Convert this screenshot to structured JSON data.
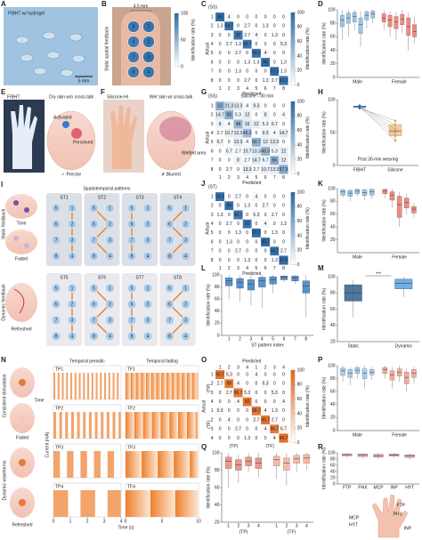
{
  "a": {
    "label": "A",
    "caption": "FIBHT w/ hydrogel",
    "scale": "5 mm"
  },
  "b": {
    "label": "B",
    "size": "4.5 mm",
    "ylabel": "Static spatial feedback",
    "points": [
      5,
      1,
      6,
      2,
      7,
      3,
      8,
      4
    ],
    "rates": [
      91,
      95,
      88,
      93,
      90,
      96,
      89,
      92
    ],
    "cbar": {
      "label": "Identification rate (%)",
      "lim": [
        0,
        100
      ],
      "ticks": [
        0,
        50,
        100
      ]
    }
  },
  "c": {
    "label": "C",
    "group": "(SS)",
    "xlabel": "Predicted",
    "ylabel": "Actual",
    "classes": [
      1,
      2,
      3,
      4,
      5,
      6,
      7,
      8
    ],
    "color": "#2a69a6",
    "matrix": [
      [
        96.0,
        4.0,
        0,
        0,
        0,
        0,
        0,
        0
      ],
      [
        1.3,
        94.7,
        0,
        2.7,
        0,
        1.3,
        0,
        0
      ],
      [
        0,
        0,
        92.0,
        2.7,
        4.0,
        0,
        1.3,
        0
      ],
      [
        0,
        2.7,
        1.3,
        90.7,
        0,
        0,
        0,
        5.3
      ],
      [
        0,
        0,
        2.7,
        0,
        93.3,
        4.0,
        0,
        0
      ],
      [
        0,
        0,
        0,
        1.3,
        1.3,
        96.0,
        0,
        1.3
      ],
      [
        0,
        0,
        1.3,
        0,
        0,
        0,
        97.3,
        1.3
      ],
      [
        0,
        0,
        0,
        2.7,
        0,
        1.3,
        2.7,
        93.3
      ]
    ],
    "cbar": {
      "label": "Identification rate (%)",
      "lim": [
        0,
        100
      ],
      "ticks": [
        0,
        20,
        40,
        60,
        80,
        100
      ]
    }
  },
  "d": {
    "label": "D",
    "ylabel": "Identification rate (%)",
    "ylim": [
      0,
      100
    ],
    "yticks": [
      0,
      20,
      40,
      60,
      80,
      100
    ],
    "groups": [
      {
        "name": "Male",
        "color": "#8ec1e4",
        "boxes": [
          [
            55,
            75,
            85,
            92,
            100
          ],
          [
            60,
            80,
            88,
            95,
            100
          ],
          [
            70,
            82,
            90,
            96,
            100
          ],
          [
            45,
            65,
            78,
            88,
            98
          ],
          [
            72,
            85,
            92,
            97,
            100
          ],
          [
            80,
            88,
            94,
            98,
            100
          ]
        ]
      },
      {
        "name": "Female",
        "color": "#ee7d72",
        "boxes": [
          [
            70,
            82,
            88,
            94,
            100
          ],
          [
            60,
            75,
            85,
            92,
            98
          ],
          [
            55,
            72,
            82,
            90,
            97
          ],
          [
            65,
            78,
            86,
            93,
            100
          ],
          [
            40,
            62,
            75,
            88,
            96
          ],
          [
            50,
            60,
            68,
            78,
            90
          ]
        ]
      }
    ]
  },
  "e": {
    "label": "E",
    "title": "FIBHT",
    "subtitle": "Dry skin w/o cross-talk",
    "activated": "Activated",
    "perceived": "Perceived",
    "verdict": "✓ Precise"
  },
  "f": {
    "label": "F",
    "title": "Silicone-HI",
    "subtitle": "Wet skin w/ cross-talk",
    "wetted": "Wetted area",
    "verdict": "✗ Blurred"
  },
  "g": {
    "label": "G",
    "group": "(SS)",
    "title": "Silicone - 30 min",
    "xlabel": "Predicted",
    "ylabel": "Actual",
    "classes": [
      1,
      2,
      3,
      4,
      5,
      6,
      7,
      8
    ],
    "color": "#2a69a6",
    "matrix": [
      [
        52.0,
        21.3,
        13.3,
        4.0,
        9.3,
        0,
        0,
        0
      ],
      [
        14.7,
        56.0,
        5.3,
        12.0,
        0,
        8.0,
        0,
        4.0
      ],
      [
        8.0,
        4.0,
        48.0,
        16.0,
        12.0,
        5.3,
        6.7,
        0
      ],
      [
        2.7,
        10.7,
        13.3,
        45.3,
        0,
        9.3,
        4.0,
        14.7
      ],
      [
        6.7,
        0,
        13.3,
        4.0,
        50.7,
        12.0,
        13.3,
        0
      ],
      [
        0,
        6.7,
        2.7,
        10.7,
        13.3,
        49.3,
        5.3,
        12.0
      ],
      [
        0,
        0,
        8.0,
        2.7,
        14.7,
        6.7,
        56.0,
        12.0
      ],
      [
        0,
        2.7,
        0,
        13.3,
        2.7,
        10.7,
        13.3,
        57.3
      ]
    ],
    "cbar": {
      "label": "Identification rate (%)",
      "lim": [
        0,
        100
      ],
      "ticks": [
        0,
        20,
        40,
        60,
        80,
        100
      ]
    }
  },
  "h": {
    "label": "H",
    "ylabel": "Identification rate (%)",
    "ylim": [
      0,
      100
    ],
    "yticks": [
      0,
      50,
      100
    ],
    "categories": [
      "FIBHT",
      "Silicone"
    ],
    "note": "Post 30-min wearing",
    "values": [
      [
        88,
        89,
        90,
        91,
        87,
        90
      ],
      [
        45,
        62,
        38,
        55,
        68,
        50
      ]
    ],
    "boxes": [
      [
        87,
        88,
        89.5,
        90,
        91
      ],
      [
        38,
        45,
        52.5,
        62,
        68
      ]
    ]
  },
  "i": {
    "label": "I",
    "title": "Spatiotemporal patterns",
    "patterns": [
      "ST1",
      "ST2",
      "ST3",
      "ST4",
      "ST5",
      "ST6",
      "ST7",
      "ST8"
    ],
    "points": [
      5,
      1,
      6,
      2,
      7,
      3,
      8,
      4
    ],
    "static_label": "Static feedback",
    "time": "Time",
    "faded": "Faded",
    "dynamic_label": "Dynamic feedback",
    "refreshed": "Refreshed"
  },
  "j": {
    "label": "J",
    "group": "(ST)",
    "xlabel": "Predicted",
    "ylabel": "Actual",
    "classes": [
      1,
      2,
      3,
      4,
      5,
      6,
      7,
      8
    ],
    "color": "#2a69a6",
    "matrix": [
      [
        93.3,
        0,
        2.7,
        0,
        4.0,
        0,
        0,
        0
      ],
      [
        0,
        96.0,
        0,
        1.3,
        0,
        2.7,
        0,
        0
      ],
      [
        1.3,
        0,
        90.7,
        0,
        5.3,
        0,
        2.7,
        0
      ],
      [
        0,
        2.7,
        0,
        92.0,
        0,
        4.0,
        0,
        1.3
      ],
      [
        0,
        0,
        1.3,
        0,
        97.3,
        0,
        1.3,
        0
      ],
      [
        0,
        1.3,
        0,
        0,
        0,
        98.7,
        0,
        0
      ],
      [
        0,
        0,
        2.7,
        0,
        0,
        0,
        94.7,
        2.7
      ],
      [
        0,
        0,
        0,
        1.3,
        0,
        0,
        1.3,
        97.3
      ]
    ],
    "cbar": {
      "label": "Identification rate (%)",
      "lim": [
        0,
        100
      ],
      "ticks": [
        0,
        20,
        40,
        60,
        80,
        100
      ]
    }
  },
  "k": {
    "label": "K",
    "ylabel": "Identification rate (%)",
    "ylim": [
      0,
      100
    ],
    "yticks": [
      20,
      40,
      60,
      80,
      100
    ],
    "groups": [
      {
        "name": "Male",
        "color": "#8ec1e4",
        "boxes": [
          [
            85,
            90,
            95,
            98,
            100
          ],
          [
            80,
            88,
            93,
            97,
            100
          ],
          [
            88,
            92,
            96,
            99,
            100
          ],
          [
            82,
            89,
            94,
            98,
            100
          ],
          [
            84,
            90,
            95,
            99,
            100
          ]
        ]
      },
      {
        "name": "Female",
        "color": "#ee7d72",
        "boxes": [
          [
            85,
            92,
            96,
            99,
            100
          ],
          [
            70,
            82,
            90,
            95,
            100
          ],
          [
            40,
            55,
            75,
            88,
            95
          ],
          [
            60,
            70,
            78,
            85,
            92
          ],
          [
            55,
            62,
            68,
            72,
            78
          ]
        ]
      }
    ]
  },
  "l": {
    "label": "L",
    "ylabel": "Identification rate (%)",
    "xlabel": "ST pattern index",
    "ylim": [
      0,
      100
    ],
    "yticks": [
      0,
      20,
      40,
      60,
      80,
      100
    ],
    "groups": [
      {
        "color": "#3f7fc1",
        "categories": [
          1,
          2,
          3,
          4,
          5,
          6,
          7,
          8
        ],
        "boxes": [
          [
            60,
            82,
            90,
            95,
            100
          ],
          [
            55,
            78,
            88,
            94,
            100
          ],
          [
            50,
            75,
            85,
            92,
            100
          ],
          [
            45,
            80,
            90,
            96,
            100
          ],
          [
            70,
            85,
            92,
            97,
            100
          ],
          [
            88,
            92,
            96,
            98,
            100
          ],
          [
            85,
            90,
            95,
            98,
            100
          ],
          [
            30,
            70,
            82,
            90,
            100
          ]
        ]
      }
    ]
  },
  "m": {
    "label": "M",
    "ylabel": "Identification rate (%)",
    "ylim": [
      20,
      100
    ],
    "yticks": [
      20,
      40,
      60,
      80,
      100
    ],
    "sig": "***",
    "groups": [
      {
        "name": "Static",
        "color": "#2f5f8a",
        "boxes": [
          [
            50,
            70,
            80,
            90,
            96
          ]
        ]
      },
      {
        "name": "Dynamic",
        "color": "#5aa0dc",
        "boxes": [
          [
            75,
            85,
            92,
            97,
            100
          ]
        ]
      }
    ]
  },
  "n": {
    "label": "N",
    "periodic": "Temporal periodic",
    "fading": "Temporal fading",
    "ylabel": "Current (mA)",
    "xlabel": "Time (s)",
    "consistent": "Consistent stimulation",
    "time": "Time",
    "faded": "Faded",
    "dynamic": "Dynamic waveforms",
    "refreshed": "Refreshed",
    "tp_xlim": [
      0,
      4
    ],
    "tp_xticks": [
      0,
      1,
      2,
      3,
      4
    ],
    "tf_xlim": [
      0,
      10
    ],
    "tf_xticks": [
      0,
      5,
      10
    ],
    "tp": [
      {
        "name": "TP1",
        "period": 0.25,
        "duty": 0.5
      },
      {
        "name": "TP2",
        "period": 0.35,
        "duty": 0.5
      },
      {
        "name": "TP3",
        "period": 0.8,
        "duty": 0.5
      },
      {
        "name": "TP4",
        "period": 1.6,
        "duty": 0.55
      }
    ],
    "tf": [
      {
        "name": "TF1",
        "period": 0.7,
        "duty": 1
      },
      {
        "name": "TF2",
        "period": 1.2,
        "duty": 1
      },
      {
        "name": "TF3",
        "period": 2.2,
        "duty": 1
      },
      {
        "name": "TF4",
        "period": 3.4,
        "duty": 1
      }
    ]
  },
  "o": {
    "label": "O",
    "xlabel": "Predicted",
    "ylabel": "Actual",
    "groups": [
      "(TP)",
      "(TF)"
    ],
    "classes": [
      1,
      2,
      3,
      4,
      1,
      2,
      3,
      4
    ],
    "color": "#e0661c",
    "matrix": [
      [
        90.7,
        5.3,
        0,
        0,
        4.0,
        0,
        0,
        0
      ],
      [
        2.7,
        88.0,
        4.0,
        0,
        0,
        5.3,
        0,
        0
      ],
      [
        0,
        2.7,
        86.7,
        5.3,
        0,
        0,
        5.3,
        0
      ],
      [
        0,
        0,
        4.0,
        92.0,
        0,
        0,
        0,
        4.0
      ],
      [
        5.3,
        0,
        0,
        0,
        89.3,
        4.0,
        1.3,
        0
      ],
      [
        0,
        4.0,
        0,
        0,
        2.7,
        90.7,
        2.7,
        0
      ],
      [
        0,
        0,
        2.7,
        0,
        0,
        4.0,
        86.7,
        6.7
      ],
      [
        0,
        0,
        0,
        1.3,
        0,
        0,
        4.0,
        94.7
      ]
    ],
    "cbar": {
      "label": "Identification rate (%)",
      "lim": [
        0,
        100
      ],
      "ticks": [
        0,
        20,
        40,
        60,
        80,
        100
      ]
    }
  },
  "p": {
    "label": "P",
    "ylabel": "Identification rate (%)",
    "ylim": [
      0,
      100
    ],
    "yticks": [
      0,
      20,
      40,
      60,
      80,
      100
    ],
    "groups": [
      {
        "name": "Male",
        "color": "#9cc8e8",
        "boxes": [
          [
            75,
            85,
            92,
            96,
            100
          ],
          [
            70,
            82,
            88,
            94,
            98
          ],
          [
            80,
            88,
            93,
            97,
            100
          ],
          [
            65,
            80,
            88,
            95,
            100
          ],
          [
            78,
            86,
            90,
            94,
            98
          ]
        ]
      },
      {
        "name": "Female",
        "color": "#f3a28f",
        "boxes": [
          [
            80,
            88,
            94,
            97,
            100
          ],
          [
            65,
            78,
            86,
            92,
            98
          ],
          [
            75,
            84,
            90,
            95,
            100
          ],
          [
            60,
            72,
            82,
            90,
            96
          ],
          [
            72,
            82,
            88,
            94,
            98
          ]
        ]
      }
    ]
  },
  "q": {
    "label": "Q",
    "ylabel": "Identification rate (%)",
    "ylim": [
      20,
      100
    ],
    "yticks": [
      20,
      40,
      60,
      80,
      100
    ],
    "groups": [
      {
        "name": "(TP)",
        "color": "#e88a7e",
        "categories": [
          1,
          2,
          3,
          4
        ],
        "boxes": [
          [
            60,
            82,
            90,
            95,
            100
          ],
          [
            65,
            80,
            86,
            92,
            98
          ],
          [
            78,
            85,
            90,
            95,
            100
          ],
          [
            72,
            82,
            88,
            94,
            100
          ]
        ]
      },
      {
        "name": "(TF)",
        "color": "#f5b39b",
        "categories": [
          1,
          2,
          3,
          4
        ],
        "boxes": [
          [
            70,
            85,
            92,
            96,
            100
          ],
          [
            62,
            80,
            88,
            94,
            100
          ],
          [
            78,
            88,
            93,
            97,
            100
          ],
          [
            80,
            88,
            94,
            98,
            100
          ]
        ]
      }
    ]
  },
  "r": {
    "label": "R",
    "ylabel": "Identification rate (%)",
    "ylim": [
      0,
      100
    ],
    "yticks": [
      0,
      20,
      40,
      60,
      80,
      100
    ],
    "groups": [
      {
        "color": "#e9a0a0",
        "categories": [
          "FTP",
          "PHX",
          "MCP",
          "INP",
          "HYT"
        ],
        "boxes": [
          [
            85,
            90,
            94,
            97,
            100
          ],
          [
            82,
            88,
            93,
            96,
            100
          ],
          [
            80,
            86,
            91,
            95,
            99
          ],
          [
            84,
            89,
            93,
            96,
            100
          ],
          [
            78,
            85,
            90,
            94,
            98
          ]
        ]
      }
    ]
  }
}
